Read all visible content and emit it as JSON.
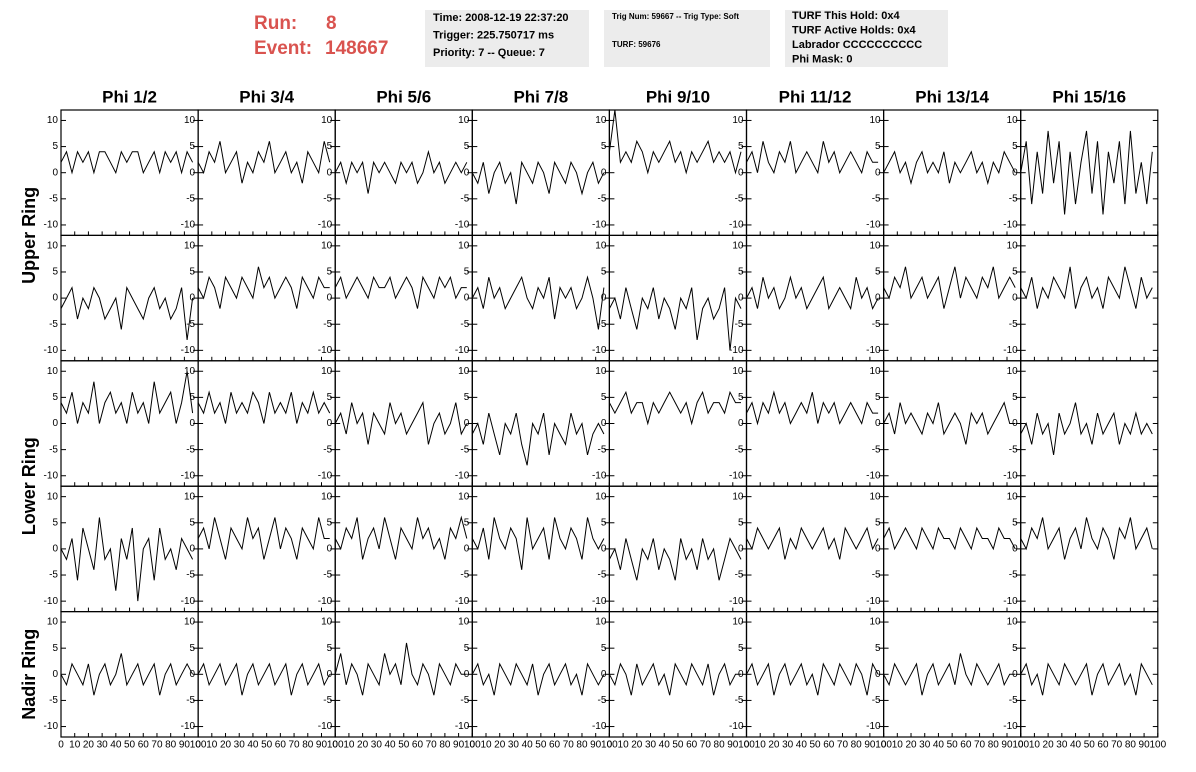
{
  "header": {
    "run_label": "Run:",
    "run": "8",
    "event_label": "Event:",
    "event": "148667",
    "boxes": [
      [
        "Time: 2008-12-19 22:37:20",
        "Trigger: 225.750717 ms",
        "Priority: 7 -- Queue: 7"
      ],
      [
        "Trig Num: 59667 -- Trig Type: Soft",
        "TURF: 59676"
      ],
      [
        "TURF This Hold: 0x4",
        "TURF Active Holds: 0x4",
        "Labrador CCCCCCCCCC",
        "Phi Mask: 0"
      ]
    ]
  },
  "columns": [
    "Phi 1/2",
    "Phi 3/4",
    "Phi 5/6",
    "Phi 7/8",
    "Phi 9/10",
    "Phi 11/12",
    "Phi 13/14",
    "Phi 15/16"
  ],
  "rings": [
    "Upper Ring",
    "Lower Ring",
    "Nadir Ring"
  ],
  "axes": {
    "xlim": [
      0,
      100
    ],
    "xticks": [
      0,
      10,
      20,
      30,
      40,
      50,
      60,
      70,
      80,
      90,
      100
    ],
    "ylim": [
      -12,
      12
    ],
    "yticks": [
      -10,
      -5,
      0,
      5,
      10
    ]
  },
  "x": [
    0,
    4,
    8,
    12,
    16,
    20,
    24,
    28,
    32,
    36,
    40,
    44,
    48,
    52,
    56,
    60,
    64,
    68,
    72,
    76,
    80,
    84,
    88,
    92,
    96
  ],
  "panels": [
    [
      [
        2,
        4,
        0,
        4,
        2,
        4,
        0,
        4,
        4,
        2,
        0,
        4,
        2,
        4,
        4,
        0,
        2,
        4,
        0,
        4,
        2,
        4,
        0,
        4,
        2
      ],
      [
        2,
        0,
        4,
        2,
        6,
        0,
        2,
        4,
        -2,
        2,
        0,
        4,
        2,
        6,
        0,
        2,
        4,
        0,
        2,
        -2,
        4,
        2,
        0,
        6,
        2
      ],
      [
        0,
        2,
        -2,
        2,
        0,
        2,
        -4,
        2,
        0,
        2,
        0,
        -2,
        2,
        0,
        2,
        -2,
        0,
        4,
        0,
        2,
        -2,
        0,
        2,
        0,
        2
      ],
      [
        0,
        -2,
        2,
        -4,
        0,
        2,
        -2,
        0,
        -6,
        2,
        0,
        -2,
        2,
        0,
        -4,
        2,
        0,
        -2,
        2,
        0,
        -4,
        0,
        2,
        -2,
        0
      ],
      [
        4,
        12,
        2,
        4,
        2,
        6,
        4,
        0,
        4,
        2,
        4,
        6,
        2,
        4,
        0,
        4,
        2,
        4,
        6,
        2,
        4,
        2,
        4,
        0,
        4
      ],
      [
        2,
        4,
        0,
        6,
        2,
        0,
        4,
        2,
        6,
        0,
        2,
        4,
        2,
        0,
        6,
        2,
        4,
        0,
        2,
        4,
        2,
        0,
        4,
        2,
        2
      ],
      [
        0,
        2,
        4,
        0,
        2,
        -2,
        2,
        4,
        0,
        2,
        0,
        4,
        -2,
        2,
        0,
        2,
        4,
        0,
        2,
        -2,
        2,
        0,
        4,
        2,
        0
      ],
      [
        0,
        6,
        -6,
        4,
        -4,
        8,
        -2,
        6,
        -8,
        4,
        -6,
        2,
        8,
        -4,
        6,
        -8,
        4,
        -2,
        6,
        -6,
        8,
        -4,
        2,
        -6,
        4
      ]
    ],
    [
      [
        -2,
        0,
        2,
        -4,
        0,
        -2,
        2,
        0,
        -4,
        -2,
        0,
        -6,
        2,
        0,
        -2,
        -4,
        0,
        2,
        -2,
        0,
        -4,
        -2,
        2,
        -8,
        0
      ],
      [
        2,
        0,
        4,
        2,
        -2,
        4,
        2,
        0,
        4,
        2,
        0,
        6,
        2,
        4,
        0,
        2,
        4,
        2,
        -2,
        4,
        2,
        0,
        4,
        2,
        2
      ],
      [
        2,
        4,
        0,
        2,
        4,
        2,
        0,
        4,
        2,
        2,
        4,
        0,
        2,
        4,
        2,
        -2,
        4,
        2,
        0,
        4,
        2,
        4,
        0,
        2,
        2
      ],
      [
        0,
        2,
        -2,
        4,
        0,
        2,
        -2,
        0,
        2,
        4,
        0,
        -2,
        2,
        0,
        4,
        -4,
        2,
        0,
        2,
        -2,
        0,
        4,
        0,
        -6,
        2
      ],
      [
        -2,
        0,
        -4,
        2,
        -2,
        -6,
        0,
        -2,
        2,
        -4,
        0,
        -2,
        -6,
        0,
        -2,
        2,
        -8,
        -2,
        0,
        -4,
        -2,
        2,
        -10,
        0,
        -2
      ],
      [
        0,
        2,
        -2,
        4,
        0,
        2,
        -2,
        0,
        4,
        0,
        2,
        -2,
        0,
        2,
        4,
        -2,
        0,
        2,
        0,
        -2,
        4,
        0,
        2,
        -2,
        0
      ],
      [
        2,
        0,
        4,
        2,
        6,
        0,
        2,
        4,
        0,
        2,
        4,
        -2,
        2,
        6,
        0,
        4,
        2,
        0,
        4,
        2,
        6,
        0,
        2,
        4,
        2
      ],
      [
        2,
        0,
        4,
        -2,
        2,
        0,
        4,
        2,
        0,
        6,
        -2,
        2,
        4,
        0,
        2,
        -2,
        4,
        2,
        0,
        6,
        2,
        -2,
        4,
        0,
        2
      ]
    ],
    [
      [
        4,
        2,
        6,
        0,
        4,
        2,
        8,
        0,
        4,
        6,
        2,
        4,
        0,
        6,
        2,
        4,
        0,
        8,
        2,
        4,
        6,
        0,
        4,
        10,
        2
      ],
      [
        4,
        2,
        6,
        2,
        4,
        0,
        6,
        2,
        4,
        2,
        6,
        4,
        0,
        6,
        2,
        4,
        2,
        6,
        0,
        4,
        2,
        6,
        2,
        4,
        2
      ],
      [
        0,
        2,
        -2,
        4,
        0,
        2,
        -4,
        2,
        0,
        -2,
        4,
        0,
        2,
        -2,
        0,
        2,
        4,
        -4,
        0,
        2,
        -2,
        0,
        4,
        -2,
        0
      ],
      [
        -2,
        0,
        -4,
        2,
        -2,
        -6,
        0,
        -2,
        2,
        -4,
        -8,
        0,
        -2,
        2,
        -6,
        0,
        -2,
        -4,
        2,
        -2,
        0,
        -6,
        -2,
        0,
        -2
      ],
      [
        4,
        2,
        4,
        6,
        2,
        4,
        4,
        0,
        4,
        2,
        4,
        6,
        4,
        2,
        4,
        0,
        4,
        6,
        2,
        4,
        4,
        2,
        6,
        4,
        4
      ],
      [
        2,
        4,
        0,
        4,
        2,
        6,
        2,
        4,
        0,
        2,
        4,
        2,
        6,
        0,
        4,
        2,
        4,
        0,
        2,
        4,
        2,
        0,
        4,
        2,
        2
      ],
      [
        0,
        2,
        -2,
        4,
        0,
        2,
        0,
        -2,
        2,
        0,
        4,
        -2,
        0,
        2,
        0,
        -4,
        2,
        0,
        2,
        -2,
        0,
        2,
        4,
        0,
        0
      ],
      [
        -2,
        0,
        -4,
        2,
        -2,
        0,
        -6,
        2,
        -2,
        0,
        4,
        -2,
        0,
        -4,
        2,
        -2,
        0,
        2,
        -4,
        0,
        -2,
        2,
        -2,
        0,
        -2
      ]
    ],
    [
      [
        0,
        -2,
        2,
        -6,
        4,
        0,
        -4,
        6,
        -2,
        0,
        -8,
        2,
        -2,
        4,
        -10,
        0,
        2,
        -6,
        4,
        -2,
        0,
        -4,
        2,
        0,
        -2
      ],
      [
        2,
        4,
        0,
        6,
        2,
        -2,
        4,
        2,
        0,
        6,
        2,
        4,
        -2,
        2,
        6,
        0,
        4,
        2,
        -2,
        4,
        2,
        0,
        6,
        2,
        2
      ],
      [
        2,
        0,
        4,
        2,
        6,
        -2,
        2,
        4,
        0,
        6,
        2,
        -2,
        4,
        2,
        0,
        6,
        2,
        4,
        0,
        2,
        -2,
        4,
        2,
        6,
        2
      ],
      [
        2,
        0,
        4,
        -2,
        6,
        2,
        0,
        4,
        2,
        -4,
        6,
        0,
        2,
        4,
        -2,
        6,
        2,
        0,
        4,
        2,
        -2,
        6,
        2,
        0,
        2
      ],
      [
        -2,
        0,
        -4,
        2,
        -2,
        -6,
        0,
        -2,
        2,
        -4,
        0,
        -2,
        -6,
        2,
        -2,
        0,
        -4,
        2,
        -2,
        0,
        -6,
        -2,
        2,
        0,
        -2
      ],
      [
        2,
        0,
        4,
        2,
        0,
        2,
        4,
        -2,
        2,
        0,
        4,
        2,
        0,
        2,
        4,
        0,
        2,
        -2,
        4,
        2,
        0,
        2,
        4,
        0,
        2
      ],
      [
        2,
        4,
        0,
        2,
        4,
        2,
        0,
        4,
        2,
        0,
        4,
        2,
        2,
        0,
        4,
        2,
        0,
        4,
        2,
        2,
        0,
        4,
        2,
        2,
        0
      ],
      [
        2,
        0,
        4,
        2,
        6,
        0,
        2,
        4,
        -2,
        2,
        4,
        0,
        6,
        2,
        0,
        4,
        2,
        -2,
        4,
        2,
        6,
        0,
        2,
        4,
        0
      ]
    ],
    [
      [
        0,
        -2,
        2,
        0,
        -2,
        2,
        -4,
        0,
        2,
        -2,
        0,
        4,
        -2,
        0,
        2,
        -2,
        0,
        2,
        -4,
        0,
        2,
        -2,
        0,
        2,
        0
      ],
      [
        0,
        2,
        -2,
        0,
        2,
        -2,
        0,
        2,
        -4,
        0,
        2,
        -2,
        0,
        2,
        -2,
        0,
        2,
        -4,
        0,
        2,
        -2,
        0,
        2,
        -2,
        0
      ],
      [
        0,
        4,
        -2,
        2,
        0,
        -4,
        2,
        0,
        -2,
        4,
        0,
        2,
        -2,
        6,
        0,
        -2,
        2,
        0,
        -4,
        2,
        0,
        -2,
        2,
        0,
        0
      ],
      [
        0,
        2,
        -2,
        0,
        -4,
        2,
        0,
        -2,
        2,
        0,
        -2,
        2,
        -4,
        0,
        2,
        -2,
        0,
        2,
        -2,
        0,
        -4,
        2,
        0,
        -2,
        0
      ],
      [
        0,
        -2,
        2,
        0,
        -4,
        2,
        -2,
        0,
        2,
        -2,
        0,
        -4,
        2,
        0,
        -2,
        2,
        0,
        -2,
        2,
        -4,
        0,
        2,
        -2,
        0,
        0
      ],
      [
        0,
        2,
        -2,
        0,
        2,
        -4,
        0,
        2,
        -2,
        0,
        2,
        -2,
        0,
        -4,
        2,
        0,
        -2,
        2,
        0,
        -2,
        2,
        0,
        -4,
        2,
        0
      ],
      [
        0,
        -2,
        2,
        0,
        -2,
        0,
        2,
        -4,
        0,
        2,
        -2,
        0,
        2,
        -2,
        4,
        0,
        -2,
        2,
        0,
        -2,
        0,
        2,
        -2,
        0,
        0
      ],
      [
        0,
        2,
        -2,
        0,
        -4,
        2,
        0,
        -2,
        2,
        0,
        -2,
        0,
        2,
        -4,
        0,
        2,
        -2,
        0,
        2,
        -2,
        0,
        -4,
        2,
        0,
        -2
      ]
    ]
  ]
}
